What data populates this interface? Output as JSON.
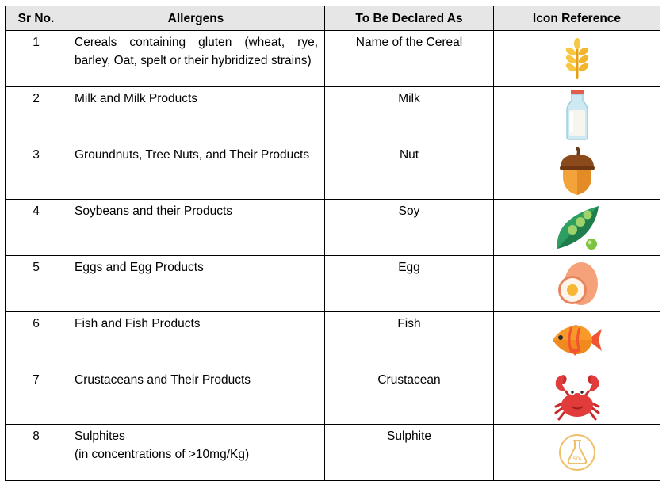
{
  "table": {
    "headers": [
      "Sr No.",
      "Allergens",
      "To Be Declared As",
      "Icon Reference"
    ],
    "rows": [
      {
        "no": "1",
        "allergen": "Cereals containing gluten (wheat, rye, barley, Oat, spelt or their hybridized strains)",
        "declared": "Name of the Cereal",
        "icon": "wheat-icon"
      },
      {
        "no": "2",
        "allergen": "Milk and Milk Products",
        "declared": "Milk",
        "icon": "milk-bottle-icon"
      },
      {
        "no": "3",
        "allergen": "Groundnuts, Tree Nuts, and Their Products",
        "declared": "Nut",
        "icon": "acorn-icon"
      },
      {
        "no": "4",
        "allergen": "Soybeans and their Products",
        "declared": "Soy",
        "icon": "soybean-pod-icon"
      },
      {
        "no": "5",
        "allergen": "Eggs and Egg Products",
        "declared": "Egg",
        "icon": "egg-icon"
      },
      {
        "no": "6",
        "allergen": "Fish and Fish Products",
        "declared": "Fish",
        "icon": "fish-icon"
      },
      {
        "no": "7",
        "allergen": "Crustaceans and Their Products",
        "declared": "Crustacean",
        "icon": "crab-icon"
      },
      {
        "no": "8",
        "allergen_line1": "Sulphites",
        "allergen_line2": "(in concentrations of >10mg/Kg)",
        "declared": "Sulphite",
        "icon": "sulphite-flask-icon",
        "icon_text": "SO₂"
      }
    ]
  }
}
